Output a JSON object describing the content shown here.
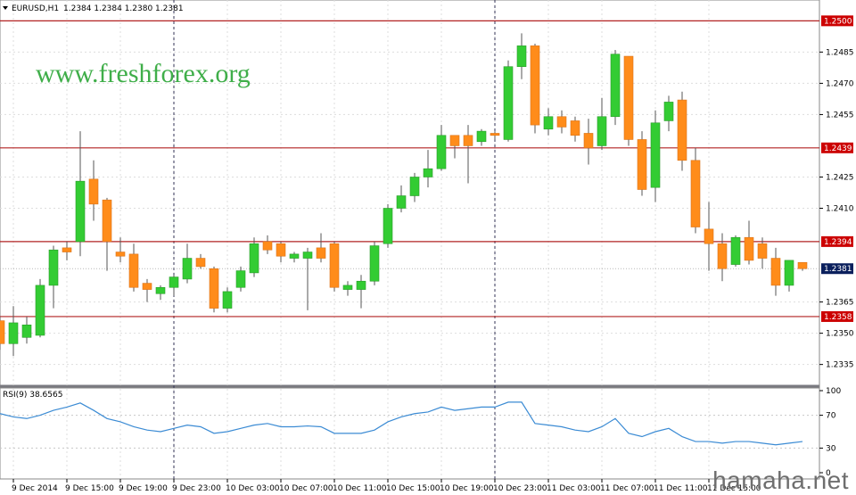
{
  "header": {
    "symbol": "EURUSD,H1",
    "ohlc": "1.2384 1.2384 1.2380 1.2381",
    "rsi_label": "RSI(9) 38.6565"
  },
  "watermarks": {
    "brand": "www.freshforex.org",
    "site": "hamaha.net"
  },
  "colors": {
    "bull": "#33cc33",
    "bear": "#ff8c1a",
    "candle_outline": "#555555",
    "level_line": "#b22222",
    "level_tag": "#cc0000",
    "current_tag": "#0a1f5c",
    "rsi_line": "#3b8bd4",
    "grid": "#dddddd"
  },
  "chart_data": [
    {
      "type": "candlestick",
      "symbol": "EURUSD",
      "timeframe": "H1",
      "ylim": [
        1.2325,
        1.251
      ],
      "yticks": [
        "1.2485",
        "1.2470",
        "1.2455",
        "1.2425",
        "1.2410",
        "1.2365",
        "1.2350",
        "1.2335"
      ],
      "levels": [
        "1.2500",
        "1.2439",
        "1.2394",
        "1.2358"
      ],
      "current_price": "1.2381",
      "xticks": [
        {
          "label": "9 Dec 2014",
          "index": 1
        },
        {
          "label": "9 Dec 15:00",
          "index": 5
        },
        {
          "label": "9 Dec 19:00",
          "index": 9
        },
        {
          "label": "9 Dec 23:00",
          "index": 13
        },
        {
          "label": "10 Dec 03:00",
          "index": 17
        },
        {
          "label": "10 Dec 07:00",
          "index": 21
        },
        {
          "label": "10 Dec 11:00",
          "index": 25
        },
        {
          "label": "10 Dec 15:00",
          "index": 29
        },
        {
          "label": "10 Dec 19:00",
          "index": 33
        },
        {
          "label": "10 Dec 23:00",
          "index": 37
        },
        {
          "label": "11 Dec 03:00",
          "index": 41
        },
        {
          "label": "11 Dec 07:00",
          "index": 45
        },
        {
          "label": "11 Dec 11:00",
          "index": 49
        },
        {
          "label": "11 Dec 15:00",
          "index": 53
        }
      ],
      "day_separators": [
        13,
        37
      ],
      "candles": [
        {
          "o": 1.2356,
          "h": 1.2358,
          "l": 1.2342,
          "c": 1.2345
        },
        {
          "o": 1.2345,
          "h": 1.2363,
          "l": 1.2339,
          "c": 1.2355
        },
        {
          "o": 1.2348,
          "h": 1.2358,
          "l": 1.2345,
          "c": 1.2354
        },
        {
          "o": 1.2349,
          "h": 1.2376,
          "l": 1.2348,
          "c": 1.2373
        },
        {
          "o": 1.2373,
          "h": 1.2392,
          "l": 1.2362,
          "c": 1.239
        },
        {
          "o": 1.2391,
          "h": 1.2394,
          "l": 1.2385,
          "c": 1.2389
        },
        {
          "o": 1.2394,
          "h": 1.2447,
          "l": 1.2387,
          "c": 1.2423
        },
        {
          "o": 1.2424,
          "h": 1.2433,
          "l": 1.2404,
          "c": 1.2412
        },
        {
          "o": 1.2414,
          "h": 1.2415,
          "l": 1.238,
          "c": 1.2394
        },
        {
          "o": 1.2389,
          "h": 1.2396,
          "l": 1.2384,
          "c": 1.2387
        },
        {
          "o": 1.2388,
          "h": 1.2393,
          "l": 1.237,
          "c": 1.2372
        },
        {
          "o": 1.2374,
          "h": 1.2376,
          "l": 1.2365,
          "c": 1.2371
        },
        {
          "o": 1.2369,
          "h": 1.2373,
          "l": 1.2366,
          "c": 1.2372
        },
        {
          "o": 1.2372,
          "h": 1.2378,
          "l": 1.2368,
          "c": 1.2377
        },
        {
          "o": 1.2376,
          "h": 1.2393,
          "l": 1.2374,
          "c": 1.2386
        },
        {
          "o": 1.2386,
          "h": 1.2388,
          "l": 1.2381,
          "c": 1.2382
        },
        {
          "o": 1.2381,
          "h": 1.2382,
          "l": 1.236,
          "c": 1.2362
        },
        {
          "o": 1.2362,
          "h": 1.2372,
          "l": 1.236,
          "c": 1.237
        },
        {
          "o": 1.2372,
          "h": 1.2382,
          "l": 1.237,
          "c": 1.238
        },
        {
          "o": 1.2379,
          "h": 1.2396,
          "l": 1.2377,
          "c": 1.2393
        },
        {
          "o": 1.2394,
          "h": 1.2397,
          "l": 1.2388,
          "c": 1.239
        },
        {
          "o": 1.2393,
          "h": 1.2394,
          "l": 1.2384,
          "c": 1.2387
        },
        {
          "o": 1.2386,
          "h": 1.2389,
          "l": 1.2384,
          "c": 1.2388
        },
        {
          "o": 1.2386,
          "h": 1.2391,
          "l": 1.2361,
          "c": 1.2389
        },
        {
          "o": 1.2391,
          "h": 1.2398,
          "l": 1.2384,
          "c": 1.2386
        },
        {
          "o": 1.2393,
          "h": 1.2394,
          "l": 1.237,
          "c": 1.2372
        },
        {
          "o": 1.2371,
          "h": 1.2375,
          "l": 1.2368,
          "c": 1.2373
        },
        {
          "o": 1.2371,
          "h": 1.2378,
          "l": 1.2362,
          "c": 1.2375
        },
        {
          "o": 1.2375,
          "h": 1.2394,
          "l": 1.2373,
          "c": 1.2392
        },
        {
          "o": 1.2393,
          "h": 1.2412,
          "l": 1.2391,
          "c": 1.241
        },
        {
          "o": 1.241,
          "h": 1.2421,
          "l": 1.2408,
          "c": 1.2416
        },
        {
          "o": 1.2416,
          "h": 1.2427,
          "l": 1.2413,
          "c": 1.2425
        },
        {
          "o": 1.2425,
          "h": 1.2438,
          "l": 1.242,
          "c": 1.2429
        },
        {
          "o": 1.2429,
          "h": 1.245,
          "l": 1.2428,
          "c": 1.2445
        },
        {
          "o": 1.2445,
          "h": 1.2445,
          "l": 1.2434,
          "c": 1.244
        },
        {
          "o": 1.2445,
          "h": 1.245,
          "l": 1.2422,
          "c": 1.244
        },
        {
          "o": 1.2442,
          "h": 1.2448,
          "l": 1.244,
          "c": 1.2447
        },
        {
          "o": 1.2446,
          "h": 1.2447,
          "l": 1.2443,
          "c": 1.2445
        },
        {
          "o": 1.2443,
          "h": 1.2481,
          "l": 1.2442,
          "c": 1.2478
        },
        {
          "o": 1.2478,
          "h": 1.2494,
          "l": 1.2472,
          "c": 1.2488
        },
        {
          "o": 1.2488,
          "h": 1.2489,
          "l": 1.2446,
          "c": 1.245
        },
        {
          "o": 1.2448,
          "h": 1.2458,
          "l": 1.2445,
          "c": 1.2454
        },
        {
          "o": 1.2454,
          "h": 1.2457,
          "l": 1.2446,
          "c": 1.2449
        },
        {
          "o": 1.2452,
          "h": 1.2454,
          "l": 1.2442,
          "c": 1.2445
        },
        {
          "o": 1.2446,
          "h": 1.2453,
          "l": 1.2431,
          "c": 1.2439
        },
        {
          "o": 1.244,
          "h": 1.2463,
          "l": 1.2438,
          "c": 1.2454
        },
        {
          "o": 1.2454,
          "h": 1.2486,
          "l": 1.245,
          "c": 1.2484
        },
        {
          "o": 1.2483,
          "h": 1.2483,
          "l": 1.244,
          "c": 1.2443
        },
        {
          "o": 1.2443,
          "h": 1.2447,
          "l": 1.2416,
          "c": 1.2419
        },
        {
          "o": 1.242,
          "h": 1.2457,
          "l": 1.2413,
          "c": 1.2451
        },
        {
          "o": 1.2452,
          "h": 1.2464,
          "l": 1.2447,
          "c": 1.2461
        },
        {
          "o": 1.2462,
          "h": 1.2466,
          "l": 1.2428,
          "c": 1.2433
        },
        {
          "o": 1.2433,
          "h": 1.2439,
          "l": 1.2398,
          "c": 1.2401
        },
        {
          "o": 1.24,
          "h": 1.2413,
          "l": 1.238,
          "c": 1.2393
        },
        {
          "o": 1.2393,
          "h": 1.2398,
          "l": 1.2375,
          "c": 1.2381
        },
        {
          "o": 1.2383,
          "h": 1.2397,
          "l": 1.2382,
          "c": 1.2396
        },
        {
          "o": 1.2396,
          "h": 1.2404,
          "l": 1.2383,
          "c": 1.2385
        },
        {
          "o": 1.2393,
          "h": 1.2396,
          "l": 1.2381,
          "c": 1.2386
        },
        {
          "o": 1.2386,
          "h": 1.2391,
          "l": 1.2368,
          "c": 1.2373
        },
        {
          "o": 1.2373,
          "h": 1.2385,
          "l": 1.237,
          "c": 1.2385
        },
        {
          "o": 1.2384,
          "h": 1.2384,
          "l": 1.238,
          "c": 1.2381
        }
      ]
    },
    {
      "type": "line",
      "indicator": "RSI",
      "period": 9,
      "ylim": [
        0,
        100
      ],
      "yticks": [
        "100",
        "70",
        "30",
        "0"
      ],
      "values": [
        72,
        68,
        66,
        70,
        76,
        80,
        85,
        76,
        66,
        62,
        56,
        52,
        50,
        54,
        58,
        56,
        48,
        50,
        54,
        58,
        60,
        56,
        56,
        57,
        56,
        48,
        48,
        48,
        52,
        62,
        68,
        72,
        74,
        80,
        76,
        78,
        80,
        80,
        86,
        86,
        60,
        58,
        56,
        52,
        50,
        56,
        66,
        48,
        44,
        50,
        54,
        44,
        38,
        38,
        36,
        38,
        38,
        36,
        34,
        36,
        38
      ]
    }
  ]
}
